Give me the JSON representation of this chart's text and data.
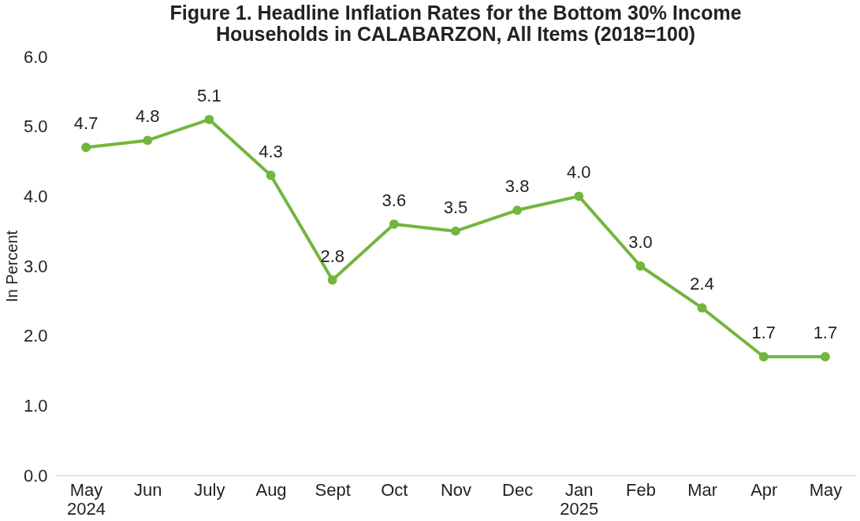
{
  "chart_data": {
    "type": "line",
    "title": "Figure 1. Headline Inflation Rates for the Bottom 30% Income\nHouseholds in CALABARZON, All Items (2018=100)",
    "ylabel": "In Percent",
    "categories": [
      "May\n2024",
      "Jun",
      "July",
      "Aug",
      "Sept",
      "Oct",
      "Nov",
      "Dec",
      "Jan\n2025",
      "Feb",
      "Mar",
      "Apr",
      "May"
    ],
    "series": [
      {
        "color": "#72b63c",
        "values": [
          4.7,
          4.8,
          5.1,
          4.3,
          2.8,
          3.6,
          3.5,
          3.8,
          4.0,
          3.0,
          2.4,
          1.7,
          1.7
        ]
      }
    ],
    "ylim": [
      0,
      6
    ],
    "yticks": [
      {
        "value": 0,
        "label": "0.0"
      },
      {
        "value": 1,
        "label": "1.0"
      },
      {
        "value": 2,
        "label": "2.0"
      },
      {
        "value": 3,
        "label": "3.0"
      },
      {
        "value": 4,
        "label": "4.0"
      },
      {
        "value": 5,
        "label": "5.0"
      },
      {
        "value": 6,
        "label": "6.0"
      }
    ],
    "value_labels": [
      "4.7",
      "4.8",
      "5.1",
      "4.3",
      "2.8",
      "3.6",
      "3.5",
      "3.8",
      "4.0",
      "3.0",
      "2.4",
      "1.7",
      "1.7"
    ],
    "grid": false,
    "legend": false,
    "marker": "circle",
    "line_style": "solid"
  }
}
